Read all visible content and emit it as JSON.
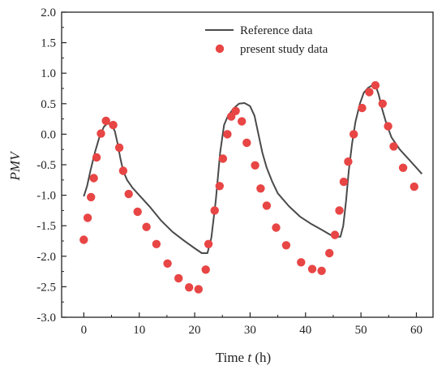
{
  "chart_data": {
    "type": "line",
    "title": "",
    "xlabel_prefix": "Time ",
    "xlabel_var": "t",
    "xlabel_suffix": " (h)",
    "ylabel": "PMV",
    "xlim": [
      -4,
      63
    ],
    "ylim": [
      -3.0,
      2.0
    ],
    "xticks": [
      0,
      10,
      20,
      30,
      40,
      50,
      60
    ],
    "yticks": [
      -3.0,
      -2.5,
      -2.0,
      -1.5,
      -1.0,
      -0.5,
      0.0,
      0.5,
      1.0,
      1.5,
      2.0
    ],
    "grid": false,
    "legend_position": "top-right",
    "series": [
      {
        "name": "Reference data",
        "kind": "line",
        "color": "#4a4a4a",
        "points": [
          [
            0,
            -1.02
          ],
          [
            0.6,
            -0.85
          ],
          [
            1.2,
            -0.6
          ],
          [
            2.0,
            -0.3
          ],
          [
            2.8,
            -0.05
          ],
          [
            3.6,
            0.12
          ],
          [
            4.3,
            0.18
          ],
          [
            5.0,
            0.15
          ],
          [
            5.6,
            0.05
          ],
          [
            6.1,
            -0.15
          ],
          [
            6.6,
            -0.4
          ],
          [
            7.1,
            -0.6
          ],
          [
            7.8,
            -0.75
          ],
          [
            8.8,
            -0.88
          ],
          [
            10.0,
            -1.0
          ],
          [
            12.0,
            -1.2
          ],
          [
            14.0,
            -1.42
          ],
          [
            16.0,
            -1.6
          ],
          [
            18.0,
            -1.74
          ],
          [
            20.0,
            -1.87
          ],
          [
            21.3,
            -1.95
          ],
          [
            22.3,
            -1.95
          ],
          [
            23.0,
            -1.7
          ],
          [
            23.8,
            -1.1
          ],
          [
            24.6,
            -0.3
          ],
          [
            25.3,
            0.15
          ],
          [
            26.0,
            0.3
          ],
          [
            27.0,
            0.42
          ],
          [
            28.0,
            0.5
          ],
          [
            29.0,
            0.51
          ],
          [
            30.0,
            0.46
          ],
          [
            30.8,
            0.3
          ],
          [
            31.5,
            0.0
          ],
          [
            32.2,
            -0.3
          ],
          [
            33.0,
            -0.55
          ],
          [
            34.0,
            -0.78
          ],
          [
            35.0,
            -0.97
          ],
          [
            37.0,
            -1.18
          ],
          [
            39.0,
            -1.35
          ],
          [
            41.0,
            -1.47
          ],
          [
            43.0,
            -1.57
          ],
          [
            44.5,
            -1.65
          ],
          [
            45.5,
            -1.68
          ],
          [
            46.3,
            -1.68
          ],
          [
            46.8,
            -1.5
          ],
          [
            47.3,
            -1.1
          ],
          [
            47.8,
            -0.6
          ],
          [
            48.4,
            -0.15
          ],
          [
            49.0,
            0.2
          ],
          [
            49.8,
            0.5
          ],
          [
            50.5,
            0.68
          ],
          [
            51.3,
            0.76
          ],
          [
            52.0,
            0.8
          ],
          [
            52.7,
            0.78
          ],
          [
            53.2,
            0.65
          ],
          [
            53.8,
            0.42
          ],
          [
            54.5,
            0.2
          ],
          [
            55.5,
            -0.05
          ],
          [
            57.0,
            -0.25
          ],
          [
            59.0,
            -0.45
          ],
          [
            61.0,
            -0.65
          ]
        ]
      },
      {
        "name": "present study data",
        "kind": "scatter",
        "color": "#e84545",
        "points": [
          [
            0,
            -1.73
          ],
          [
            0.7,
            -1.37
          ],
          [
            1.3,
            -1.03
          ],
          [
            1.8,
            -0.72
          ],
          [
            2.3,
            -0.38
          ],
          [
            3.1,
            0.01
          ],
          [
            4.0,
            0.22
          ],
          [
            5.3,
            0.15
          ],
          [
            6.4,
            -0.22
          ],
          [
            7.1,
            -0.6
          ],
          [
            8.1,
            -0.98
          ],
          [
            9.7,
            -1.27
          ],
          [
            11.3,
            -1.52
          ],
          [
            13.1,
            -1.8
          ],
          [
            15.1,
            -2.12
          ],
          [
            17.1,
            -2.36
          ],
          [
            19.0,
            -2.51
          ],
          [
            20.7,
            -2.54
          ],
          [
            22.0,
            -2.22
          ],
          [
            22.5,
            -1.8
          ],
          [
            23.6,
            -1.25
          ],
          [
            24.5,
            -0.85
          ],
          [
            25.1,
            -0.4
          ],
          [
            25.9,
            0.0
          ],
          [
            26.6,
            0.29
          ],
          [
            27.4,
            0.38
          ],
          [
            28.5,
            0.21
          ],
          [
            29.4,
            -0.14
          ],
          [
            30.9,
            -0.51
          ],
          [
            31.9,
            -0.89
          ],
          [
            33.0,
            -1.17
          ],
          [
            34.7,
            -1.53
          ],
          [
            36.5,
            -1.82
          ],
          [
            39.2,
            -2.1
          ],
          [
            41.2,
            -2.21
          ],
          [
            42.9,
            -2.24
          ],
          [
            44.3,
            -1.95
          ],
          [
            45.3,
            -1.65
          ],
          [
            46.1,
            -1.25
          ],
          [
            46.9,
            -0.78
          ],
          [
            47.7,
            -0.45
          ],
          [
            48.7,
            0.0
          ],
          [
            50.2,
            0.43
          ],
          [
            51.5,
            0.69
          ],
          [
            52.6,
            0.8
          ],
          [
            53.9,
            0.5
          ],
          [
            54.9,
            0.13
          ],
          [
            55.9,
            -0.2
          ],
          [
            57.6,
            -0.55
          ],
          [
            59.6,
            -0.86
          ]
        ]
      }
    ]
  }
}
